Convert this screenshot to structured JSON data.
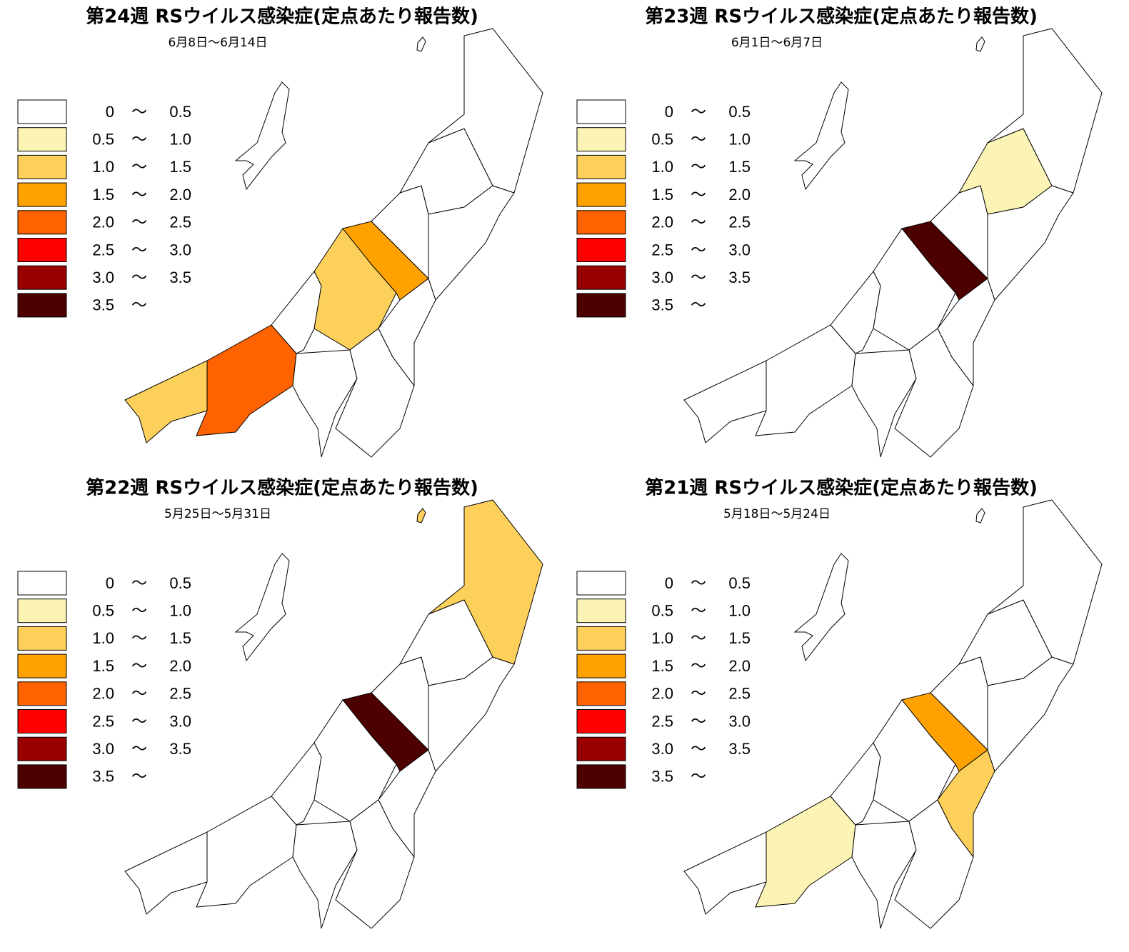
{
  "legend": [
    {
      "from": "0",
      "sep": "〜",
      "to": "0.5",
      "color": "#ffffff"
    },
    {
      "from": "0.5",
      "sep": "〜",
      "to": "1.0",
      "color": "#fbf4b4"
    },
    {
      "from": "1.0",
      "sep": "〜",
      "to": "1.5",
      "color": "#fcd05a"
    },
    {
      "from": "1.5",
      "sep": "〜",
      "to": "2.0",
      "color": "#ffa200"
    },
    {
      "from": "2.0",
      "sep": "〜",
      "to": "2.5",
      "color": "#ff6200"
    },
    {
      "from": "2.5",
      "sep": "〜",
      "to": "3.0",
      "color": "#ff0000"
    },
    {
      "from": "3.0",
      "sep": "〜",
      "to": "3.5",
      "color": "#990000"
    },
    {
      "from": "3.5",
      "sep": "〜",
      "to": null,
      "color": "#4d0000"
    }
  ],
  "panels": [
    {
      "title": "第24週 RSウイルス感染症(定点あたり報告数)",
      "subtitle": "6月8日〜6月14日",
      "region_colors": [
        "#fcd05a",
        "#ff6200",
        "#ffffff",
        "#fcd05a",
        "#ffa200",
        "#ffffff",
        "#ffffff",
        "#ffffff",
        "#ffffff",
        "#ffffff",
        "#ffffff",
        "#ffffff",
        "#ffffff",
        "#ffffff"
      ]
    },
    {
      "title": "第23週 RSウイルス感染症(定点あたり報告数)",
      "subtitle": "6月1日〜6月7日",
      "region_colors": [
        "#ffffff",
        "#ffffff",
        "#ffffff",
        "#ffffff",
        "#4d0000",
        "#ffffff",
        "#ffffff",
        "#ffffff",
        "#ffffff",
        "#fbf4b4",
        "#ffffff",
        "#ffffff",
        "#ffffff",
        "#ffffff"
      ]
    },
    {
      "title": "第22週 RSウイルス感染症(定点あたり報告数)",
      "subtitle": "5月25日〜5月31日",
      "region_colors": [
        "#ffffff",
        "#ffffff",
        "#ffffff",
        "#ffffff",
        "#4d0000",
        "#ffffff",
        "#ffffff",
        "#ffffff",
        "#ffffff",
        "#ffffff",
        "#ffffff",
        "#fcd05a",
        "#ffffff",
        "#fcd05a"
      ]
    },
    {
      "title": "第21週 RSウイルス感染症(定点あたり報告数)",
      "subtitle": "5月18日〜5月24日",
      "region_colors": [
        "#ffffff",
        "#fbf4b4",
        "#ffffff",
        "#ffffff",
        "#ffa200",
        "#ffffff",
        "#ffffff",
        "#fcd05a",
        "#ffffff",
        "#ffffff",
        "#ffffff",
        "#ffffff",
        "#ffffff",
        "#ffffff"
      ]
    }
  ]
}
